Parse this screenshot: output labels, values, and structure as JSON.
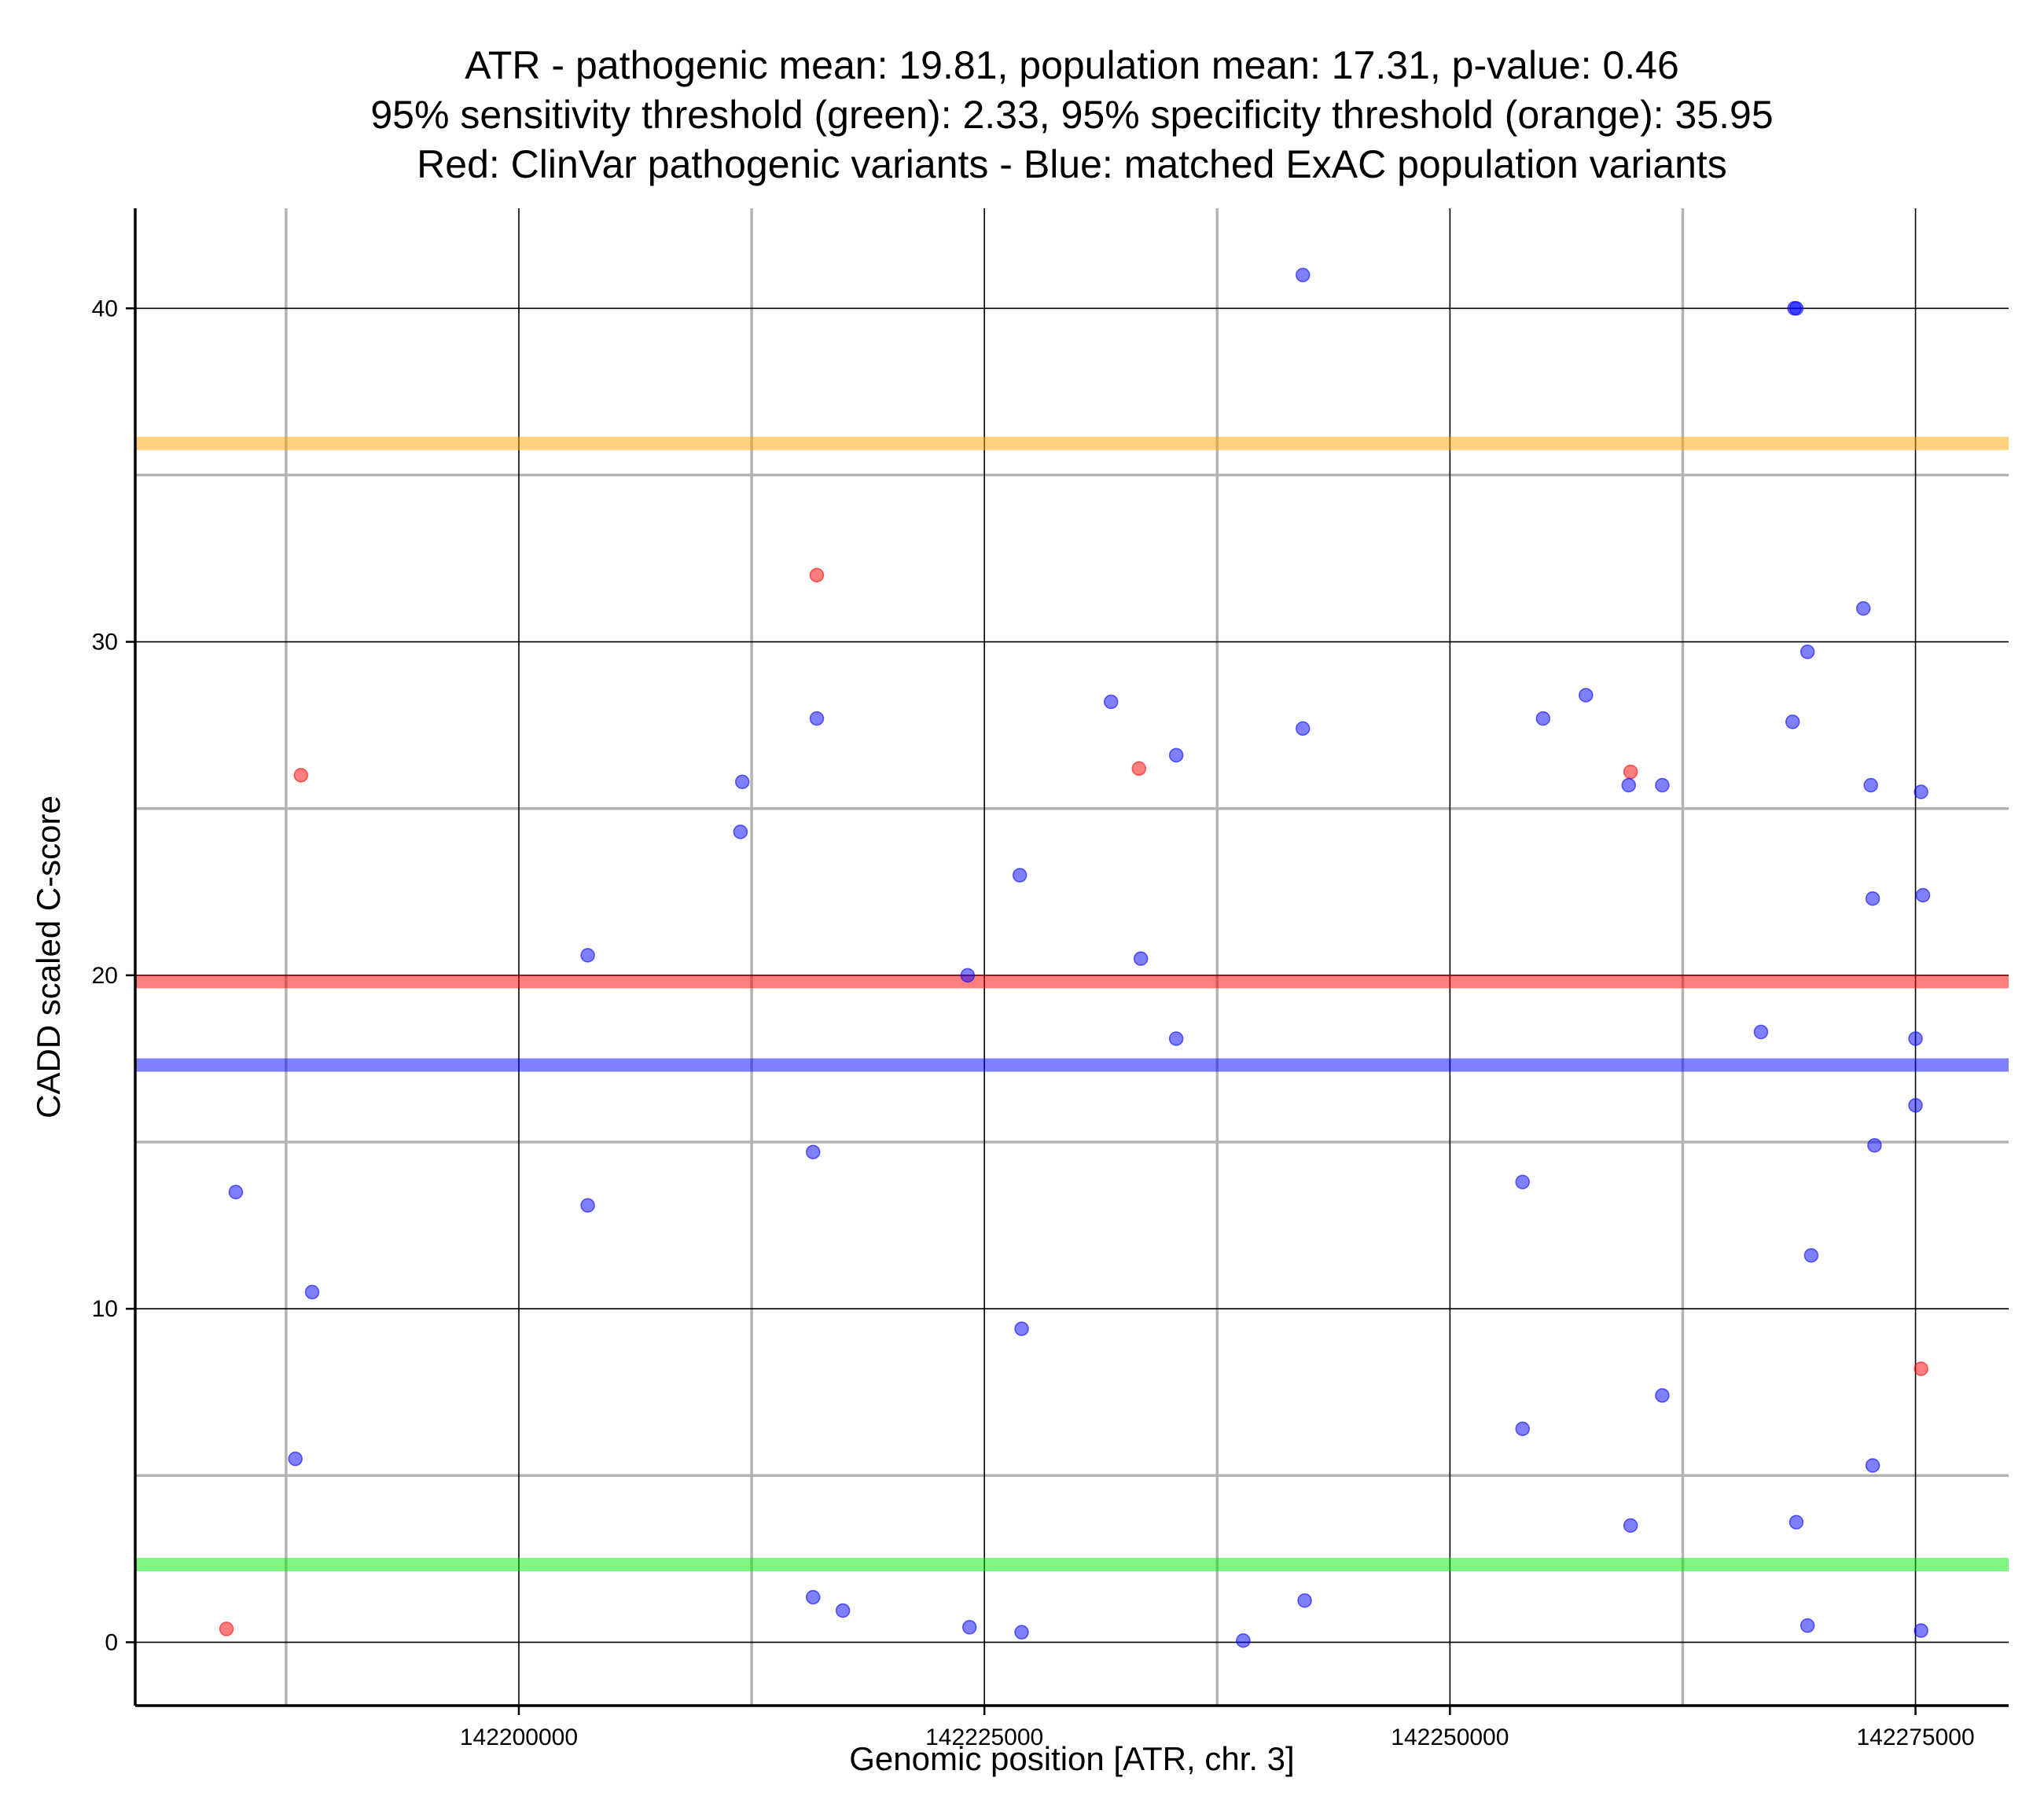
{
  "chart_data": {
    "type": "scatter",
    "title_lines": [
      "ATR - pathogenic mean: 19.81, population mean: 17.31, p-value: 0.46",
      "95% sensitivity threshold (green): 2.33, 95% specificity threshold (orange): 35.95",
      "Red: ClinVar pathogenic variants - Blue: matched ExAC population variants"
    ],
    "xlabel": "Genomic position [ATR, chr. 3]",
    "ylabel": "CADD scaled C-score",
    "xlim": [
      142179400,
      142280000
    ],
    "ylim": [
      -1.9,
      43
    ],
    "x_major_ticks": [
      142200000,
      142225000,
      142250000,
      142275000
    ],
    "x_major_tick_labels": [
      "142200000",
      "142225000",
      "142250000",
      "142275000"
    ],
    "x_minor_gridlines": [
      142187500,
      142212500,
      142237500,
      142262500
    ],
    "y_major_ticks": [
      0,
      10,
      20,
      30,
      40
    ],
    "y_major_tick_labels": [
      "0",
      "10",
      "20",
      "30",
      "40"
    ],
    "y_minor_gridlines": [
      5,
      15,
      25,
      35
    ],
    "grid": true,
    "reference_lines": [
      {
        "name": "95% specificity threshold",
        "value": 35.95,
        "color": "#ffa500"
      },
      {
        "name": "pathogenic mean",
        "value": 19.81,
        "color": "#ff0000"
      },
      {
        "name": "population mean",
        "value": 17.31,
        "color": "#0000ff"
      },
      {
        "name": "95% sensitivity threshold",
        "value": 2.33,
        "color": "#00ee00"
      }
    ],
    "series": [
      {
        "name": "ClinVar pathogenic variants",
        "color": "#ff0000",
        "points": [
          [
            142184300,
            0.4
          ],
          [
            142188300,
            26.0
          ],
          [
            142216000,
            32.0
          ],
          [
            142233300,
            26.2
          ],
          [
            142259700,
            26.1
          ],
          [
            142275300,
            8.2
          ]
        ]
      },
      {
        "name": "matched ExAC population variants",
        "color": "#0000ff",
        "points": [
          [
            142184800,
            13.5
          ],
          [
            142188000,
            5.5
          ],
          [
            142188900,
            10.5
          ],
          [
            142203700,
            20.6
          ],
          [
            142203700,
            13.1
          ],
          [
            142211900,
            24.3
          ],
          [
            142212000,
            25.8
          ],
          [
            142215800,
            14.7
          ],
          [
            142215800,
            1.35
          ],
          [
            142216000,
            27.7
          ],
          [
            142217400,
            0.95
          ],
          [
            142224100,
            20.0
          ],
          [
            142224200,
            0.45
          ],
          [
            142226900,
            23.0
          ],
          [
            142227000,
            9.4
          ],
          [
            142227000,
            0.3
          ],
          [
            142231800,
            28.2
          ],
          [
            142233400,
            20.5
          ],
          [
            142235300,
            26.6
          ],
          [
            142235300,
            18.1
          ],
          [
            142238900,
            0.05
          ],
          [
            142242100,
            41.0
          ],
          [
            142242100,
            27.4
          ],
          [
            142242200,
            1.25
          ],
          [
            142253900,
            13.8
          ],
          [
            142253900,
            6.4
          ],
          [
            142255000,
            27.7
          ],
          [
            142257300,
            28.4
          ],
          [
            142259600,
            25.7
          ],
          [
            142259700,
            3.5
          ],
          [
            142261400,
            25.7
          ],
          [
            142261400,
            7.4
          ],
          [
            142266700,
            18.3
          ],
          [
            142268400,
            27.6
          ],
          [
            142268500,
            40.0
          ],
          [
            142268600,
            40.0
          ],
          [
            142268600,
            3.6
          ],
          [
            142269200,
            29.7
          ],
          [
            142269200,
            0.5
          ],
          [
            142269400,
            11.6
          ],
          [
            142272200,
            31.0
          ],
          [
            142272600,
            25.7
          ],
          [
            142272700,
            22.3
          ],
          [
            142272700,
            5.3
          ],
          [
            142272800,
            14.9
          ],
          [
            142275000,
            18.1
          ],
          [
            142275000,
            16.1
          ],
          [
            142275300,
            25.5
          ],
          [
            142275300,
            0.35
          ],
          [
            142275400,
            22.4
          ]
        ]
      }
    ]
  }
}
